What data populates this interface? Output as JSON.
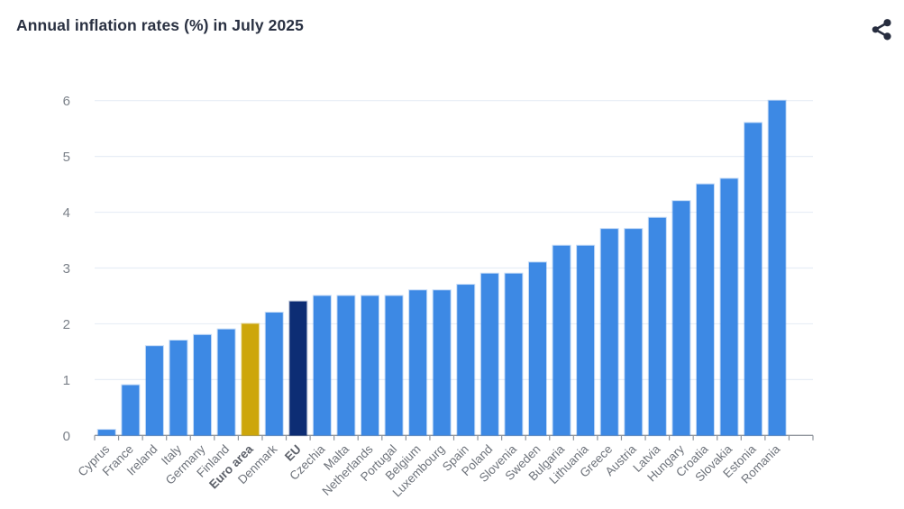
{
  "header": {
    "title": "Annual inflation rates (%) in July 2025",
    "share_icon": "share-icon"
  },
  "chart_data": {
    "type": "bar",
    "title": "Annual inflation rates (%) in July 2025",
    "value_unit": "%",
    "categories": [
      "Cyprus",
      "France",
      "Ireland",
      "Italy",
      "Germany",
      "Finland",
      "Euro area",
      "Denmark",
      "EU",
      "Czechia",
      "Malta",
      "Netherlands",
      "Portugal",
      "Belgium",
      "Luxembourg",
      "Spain",
      "Poland",
      "Slovenia",
      "Sweden",
      "Bulgaria",
      "Lithuania",
      "Greece",
      "Austria",
      "Latvia",
      "Hungary",
      "Croatia",
      "Slovakia",
      "Estonia",
      "Romania"
    ],
    "values": [
      0.1,
      0.9,
      1.6,
      1.7,
      1.8,
      1.9,
      2.0,
      2.2,
      2.4,
      2.5,
      2.5,
      2.5,
      2.5,
      2.6,
      2.6,
      2.7,
      2.9,
      2.9,
      3.1,
      3.4,
      3.4,
      3.7,
      3.7,
      3.9,
      4.2,
      4.5,
      4.6,
      5.6,
      6.0
    ],
    "highlights": {
      "Euro area": {
        "color": "#cda60a",
        "bold": true
      },
      "EU": {
        "color": "#0d2d74",
        "bold": true
      }
    },
    "xlabel": "",
    "ylabel": "",
    "ylim": [
      0,
      6
    ],
    "y_ticks": [
      0,
      1,
      2,
      3,
      4,
      5,
      6
    ],
    "grid": true,
    "legend_position": "none",
    "x_label_rotation_deg": 45,
    "colors": {
      "bar": "#3d89e4",
      "grid": "#e7edf6",
      "axis": "#8f949c",
      "x_label": "#6e737b",
      "x_label_bold": "#5d616a",
      "y_label": "#7b8189",
      "title": "#2a3142",
      "icon": "#272d3f",
      "background": "#ffffff"
    }
  }
}
